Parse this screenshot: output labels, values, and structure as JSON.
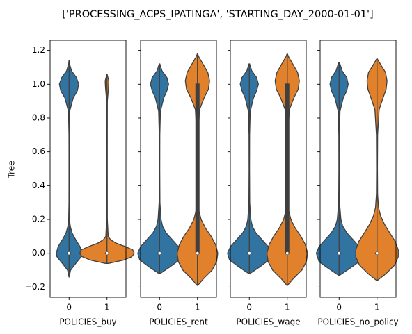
{
  "title": "['PROCESSING_ACPS_IPATINGA', 'STARTING_DAY_2000-01-01']",
  "colors": {
    "cat0": "#3274a1",
    "cat1": "#e1812c",
    "line": "#3f3f3f"
  },
  "chart_data": {
    "type": "violin",
    "title": "['PROCESSING_ACPS_IPATINGA', 'STARTING_DAY_2000-01-01']",
    "ylabel": "Tree",
    "ylim": [
      -0.26,
      1.26
    ],
    "yticks": [
      -0.2,
      0.0,
      0.2,
      0.4,
      0.6,
      0.8,
      1.0,
      1.2
    ],
    "ytick_labels": [
      "−0.2",
      "0.0",
      "0.2",
      "0.4",
      "0.6",
      "0.8",
      "1.0",
      "1.2"
    ],
    "categories": [
      "0",
      "1"
    ],
    "panels": [
      {
        "xlabel": "POLICIES_buy",
        "violins": [
          {
            "category": "0",
            "median": 0.0,
            "q1": 0.0,
            "q3": 0.0,
            "ymin": -0.14,
            "ymax": 1.14,
            "density": [
              [
                -0.14,
                0.002
              ],
              [
                -0.1,
                0.05
              ],
              [
                -0.06,
                0.22
              ],
              [
                -0.02,
                0.4
              ],
              [
                0.0,
                0.42
              ],
              [
                0.04,
                0.36
              ],
              [
                0.08,
                0.22
              ],
              [
                0.12,
                0.1
              ],
              [
                0.16,
                0.04
              ],
              [
                0.2,
                0.014
              ],
              [
                0.3,
                0.004
              ],
              [
                0.5,
                0.003
              ],
              [
                0.7,
                0.004
              ],
              [
                0.84,
                0.02
              ],
              [
                0.92,
                0.14
              ],
              [
                0.96,
                0.27
              ],
              [
                1.0,
                0.32
              ],
              [
                1.04,
                0.24
              ],
              [
                1.08,
                0.08
              ],
              [
                1.12,
                0.015
              ],
              [
                1.14,
                0.002
              ]
            ]
          },
          {
            "category": "1",
            "median": 0.0,
            "q1": 0.0,
            "q3": 0.0,
            "ymin": -0.06,
            "ymax": 1.06,
            "density": [
              [
                -0.06,
                0.05
              ],
              [
                -0.04,
                0.55
              ],
              [
                -0.02,
                0.82
              ],
              [
                0.0,
                0.9
              ],
              [
                0.02,
                0.85
              ],
              [
                0.04,
                0.6
              ],
              [
                0.06,
                0.3
              ],
              [
                0.08,
                0.12
              ],
              [
                0.1,
                0.04
              ],
              [
                0.2,
                0.012
              ],
              [
                0.5,
                0.01
              ],
              [
                0.9,
                0.012
              ],
              [
                0.98,
                0.05
              ],
              [
                1.02,
                0.06
              ],
              [
                1.06,
                0.002
              ]
            ]
          }
        ]
      },
      {
        "xlabel": "POLICIES_rent",
        "violins": [
          {
            "category": "0",
            "median": 0.0,
            "q1": 0.0,
            "q3": 0.0,
            "ymin": -0.12,
            "ymax": 1.12,
            "density": [
              [
                -0.12,
                0.02
              ],
              [
                -0.08,
                0.35
              ],
              [
                -0.04,
                0.65
              ],
              [
                0.0,
                0.72
              ],
              [
                0.04,
                0.62
              ],
              [
                0.08,
                0.42
              ],
              [
                0.12,
                0.22
              ],
              [
                0.16,
                0.1
              ],
              [
                0.2,
                0.05
              ],
              [
                0.3,
                0.014
              ],
              [
                0.5,
                0.008
              ],
              [
                0.7,
                0.01
              ],
              [
                0.84,
                0.03
              ],
              [
                0.92,
                0.14
              ],
              [
                0.96,
                0.24
              ],
              [
                1.0,
                0.3
              ],
              [
                1.04,
                0.24
              ],
              [
                1.08,
                0.08
              ],
              [
                1.12,
                0.01
              ]
            ]
          },
          {
            "category": "1",
            "median": 0.0,
            "q1": 0.0,
            "q3": 1.0,
            "ymin": -0.19,
            "ymax": 1.18,
            "density": [
              [
                -0.19,
                0.01
              ],
              [
                -0.15,
                0.2
              ],
              [
                -0.1,
                0.48
              ],
              [
                -0.05,
                0.63
              ],
              [
                0.0,
                0.67
              ],
              [
                0.05,
                0.6
              ],
              [
                0.1,
                0.45
              ],
              [
                0.15,
                0.26
              ],
              [
                0.2,
                0.12
              ],
              [
                0.25,
                0.05
              ],
              [
                0.35,
                0.02
              ],
              [
                0.5,
                0.015
              ],
              [
                0.7,
                0.02
              ],
              [
                0.85,
                0.07
              ],
              [
                0.92,
                0.22
              ],
              [
                0.97,
                0.36
              ],
              [
                1.02,
                0.4
              ],
              [
                1.07,
                0.34
              ],
              [
                1.12,
                0.18
              ],
              [
                1.16,
                0.05
              ],
              [
                1.18,
                0.005
              ]
            ]
          }
        ]
      },
      {
        "xlabel": "POLICIES_wage",
        "violins": [
          {
            "category": "0",
            "median": 0.0,
            "q1": 0.0,
            "q3": 0.0,
            "ymin": -0.12,
            "ymax": 1.12,
            "density": [
              [
                -0.12,
                0.02
              ],
              [
                -0.08,
                0.35
              ],
              [
                -0.04,
                0.65
              ],
              [
                0.0,
                0.72
              ],
              [
                0.04,
                0.62
              ],
              [
                0.08,
                0.42
              ],
              [
                0.12,
                0.22
              ],
              [
                0.16,
                0.1
              ],
              [
                0.2,
                0.05
              ],
              [
                0.3,
                0.014
              ],
              [
                0.5,
                0.008
              ],
              [
                0.7,
                0.01
              ],
              [
                0.84,
                0.03
              ],
              [
                0.92,
                0.14
              ],
              [
                0.96,
                0.24
              ],
              [
                1.0,
                0.3
              ],
              [
                1.04,
                0.24
              ],
              [
                1.08,
                0.08
              ],
              [
                1.12,
                0.01
              ]
            ]
          },
          {
            "category": "1",
            "median": 0.0,
            "q1": 0.0,
            "q3": 1.0,
            "ymin": -0.19,
            "ymax": 1.18,
            "density": [
              [
                -0.19,
                0.01
              ],
              [
                -0.15,
                0.2
              ],
              [
                -0.1,
                0.48
              ],
              [
                -0.05,
                0.63
              ],
              [
                0.0,
                0.67
              ],
              [
                0.05,
                0.6
              ],
              [
                0.1,
                0.45
              ],
              [
                0.15,
                0.26
              ],
              [
                0.2,
                0.12
              ],
              [
                0.25,
                0.05
              ],
              [
                0.35,
                0.02
              ],
              [
                0.5,
                0.015
              ],
              [
                0.7,
                0.02
              ],
              [
                0.85,
                0.07
              ],
              [
                0.92,
                0.22
              ],
              [
                0.97,
                0.36
              ],
              [
                1.02,
                0.4
              ],
              [
                1.07,
                0.34
              ],
              [
                1.12,
                0.18
              ],
              [
                1.16,
                0.05
              ],
              [
                1.18,
                0.005
              ]
            ]
          }
        ]
      },
      {
        "xlabel": "POLICIES_no_policy",
        "violins": [
          {
            "category": "0",
            "median": 0.0,
            "q1": 0.0,
            "q3": 0.0,
            "ymin": -0.13,
            "ymax": 1.13,
            "density": [
              [
                -0.13,
                0.02
              ],
              [
                -0.09,
                0.35
              ],
              [
                -0.05,
                0.66
              ],
              [
                0.0,
                0.75
              ],
              [
                0.04,
                0.66
              ],
              [
                0.08,
                0.46
              ],
              [
                0.12,
                0.26
              ],
              [
                0.16,
                0.12
              ],
              [
                0.2,
                0.06
              ],
              [
                0.3,
                0.015
              ],
              [
                0.5,
                0.008
              ],
              [
                0.7,
                0.01
              ],
              [
                0.84,
                0.03
              ],
              [
                0.92,
                0.14
              ],
              [
                0.96,
                0.25
              ],
              [
                1.0,
                0.3
              ],
              [
                1.04,
                0.25
              ],
              [
                1.08,
                0.1
              ],
              [
                1.13,
                0.01
              ]
            ]
          },
          {
            "category": "1",
            "median": 0.0,
            "q1": 0.0,
            "q3": 0.0,
            "ymin": -0.16,
            "ymax": 1.15,
            "density": [
              [
                -0.16,
                0.02
              ],
              [
                -0.12,
                0.3
              ],
              [
                -0.07,
                0.58
              ],
              [
                -0.02,
                0.7
              ],
              [
                0.02,
                0.7
              ],
              [
                0.07,
                0.6
              ],
              [
                0.12,
                0.42
              ],
              [
                0.17,
                0.25
              ],
              [
                0.22,
                0.12
              ],
              [
                0.27,
                0.05
              ],
              [
                0.35,
                0.02
              ],
              [
                0.5,
                0.015
              ],
              [
                0.7,
                0.02
              ],
              [
                0.85,
                0.07
              ],
              [
                0.92,
                0.2
              ],
              [
                0.97,
                0.3
              ],
              [
                1.02,
                0.33
              ],
              [
                1.07,
                0.28
              ],
              [
                1.11,
                0.14
              ],
              [
                1.15,
                0.01
              ]
            ]
          }
        ]
      }
    ]
  }
}
